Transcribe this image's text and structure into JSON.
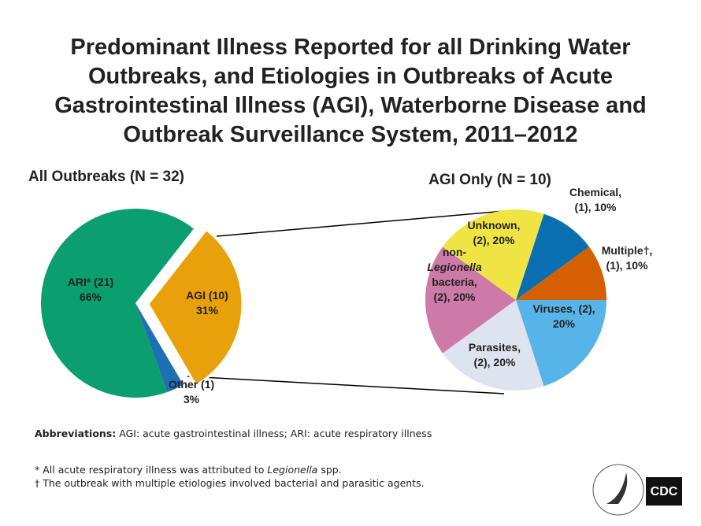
{
  "title": [
    "Predominant Illness Reported for all Drinking Water",
    "Outbreaks, and Etiologies in Outbreaks of Acute",
    "Gastrointestinal Illness (AGI), Waterborne Disease and",
    "Outbreak Surveillance System, 2011–2012"
  ],
  "chart_data": [
    {
      "type": "pie",
      "title": "All Outbreaks (N = 32)",
      "categories": [
        "ARI* (21)",
        "AGI (10)",
        "Other (1)"
      ],
      "values": [
        66,
        31,
        3
      ],
      "value_labels": [
        "66%",
        "31%",
        "3%"
      ],
      "colors": [
        "#0b9e6f",
        "#e8a10a",
        "#1f6fb5"
      ]
    },
    {
      "type": "pie",
      "title": "AGI Only (N = 10)",
      "categories": [
        [
          "Chemical,"
        ],
        [
          "Multiple†,"
        ],
        [
          "Viruses, (2),"
        ],
        [
          "Parasites,"
        ],
        [
          "non-",
          "Legionella",
          "bacteria,"
        ],
        [
          "Unknown,"
        ]
      ],
      "values": [
        10,
        10,
        20,
        20,
        20,
        20
      ],
      "value_labels": [
        "(1), 10%",
        "(1), 10%",
        "20%",
        "(2), 20%",
        "(2), 20%",
        "(2), 20%"
      ],
      "colors": [
        "#0a6fb0",
        "#d65f00",
        "#57b4e8",
        "#dde3ef",
        "#cd7aa8",
        "#f0e445"
      ]
    }
  ],
  "notes": {
    "abbreviations": {
      "label": "Abbreviations:",
      "text": " AGI: acute gastrointestinal illness; ARI: acute respiratory illness"
    },
    "footnotes": [
      [
        "* All acute respiratory illness was attributed to ",
        "Legionella",
        " spp."
      ],
      [
        "† The outbreak with multiple etiologies involved bacterial and parasitic agents."
      ]
    ]
  },
  "logo_text": "CDC"
}
